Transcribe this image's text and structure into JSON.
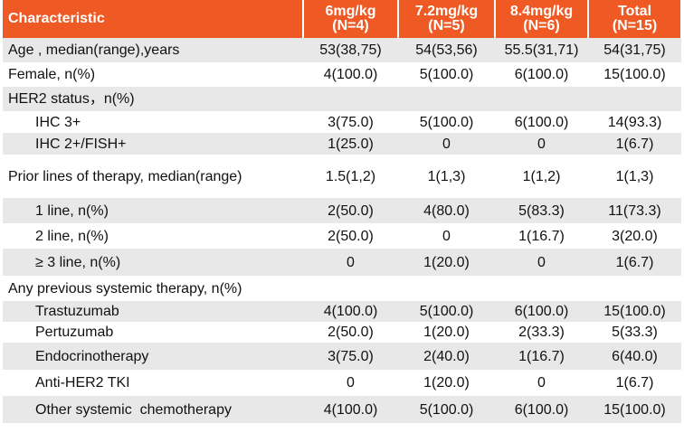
{
  "table": {
    "header": {
      "characteristic": "Characteristic",
      "columns": [
        {
          "dose": "6mg/kg",
          "n": "(N=4)"
        },
        {
          "dose": "7.2mg/kg",
          "n": "(N=5)"
        },
        {
          "dose": "8.4mg/kg",
          "n": "(N=6)"
        },
        {
          "dose": "Total",
          "n": "(N=15)"
        }
      ]
    },
    "rows": [
      {
        "label": "Age , median(range),years",
        "values": [
          "53(38,75)",
          "54(53,56)",
          "55.5(31,71)",
          "54(31,75)"
        ]
      },
      {
        "label": "Female, n(%)",
        "values": [
          "4(100.0)",
          "5(100.0)",
          "6(100.0)",
          "15(100.0)"
        ]
      },
      {
        "label": "HER2 status，n(%)",
        "subrows": [
          {
            "label": "IHC 3+",
            "values": [
              "3(75.0)",
              "5(100.0)",
              "6(100.0)",
              "14(93.3)"
            ]
          },
          {
            "label": "IHC 2+/FISH+",
            "values": [
              "1(25.0)",
              "0",
              "0",
              "1(6.7)"
            ]
          }
        ]
      },
      {
        "label": "Prior lines of therapy, median(range)",
        "values": [
          "1.5(1,2)",
          "1(1,3)",
          "1(1,2)",
          "1(1,3)"
        ],
        "subrows": [
          {
            "label": "1 line, n(%)",
            "values": [
              "2(50.0)",
              "4(80.0)",
              "5(83.3)",
              "11(73.3)"
            ]
          },
          {
            "label": "2 line, n(%)",
            "values": [
              "2(50.0)",
              "0",
              "1(16.7)",
              "3(20.0)"
            ]
          },
          {
            "label": "≥ 3 line, n(%)",
            "values": [
              "0",
              "1(20.0)",
              "0",
              "1(6.7)"
            ]
          }
        ]
      },
      {
        "label": "Any previous systemic therapy, n(%)",
        "subrows": [
          {
            "label": "Trastuzumab",
            "values": [
              "4(100.0)",
              "5(100.0)",
              "6(100.0)",
              "15(100.0)"
            ]
          },
          {
            "label": "Pertuzumab",
            "values": [
              "2(50.0)",
              "1(20.0)",
              "2(33.3)",
              "5(33.3)"
            ]
          },
          {
            "label": "Endocrinotherapy",
            "values": [
              "3(75.0)",
              "2(40.0)",
              "1(16.7)",
              "6(40.0)"
            ]
          },
          {
            "label": "Anti-HER2 TKI",
            "values": [
              "0",
              "1(20.0)",
              "0",
              "1(6.7)"
            ]
          },
          {
            "label": "Other systemic  chemotherapy",
            "values": [
              "4(100.0)",
              "5(100.0)",
              "6(100.0)",
              "15(100.0)"
            ]
          }
        ]
      }
    ]
  }
}
